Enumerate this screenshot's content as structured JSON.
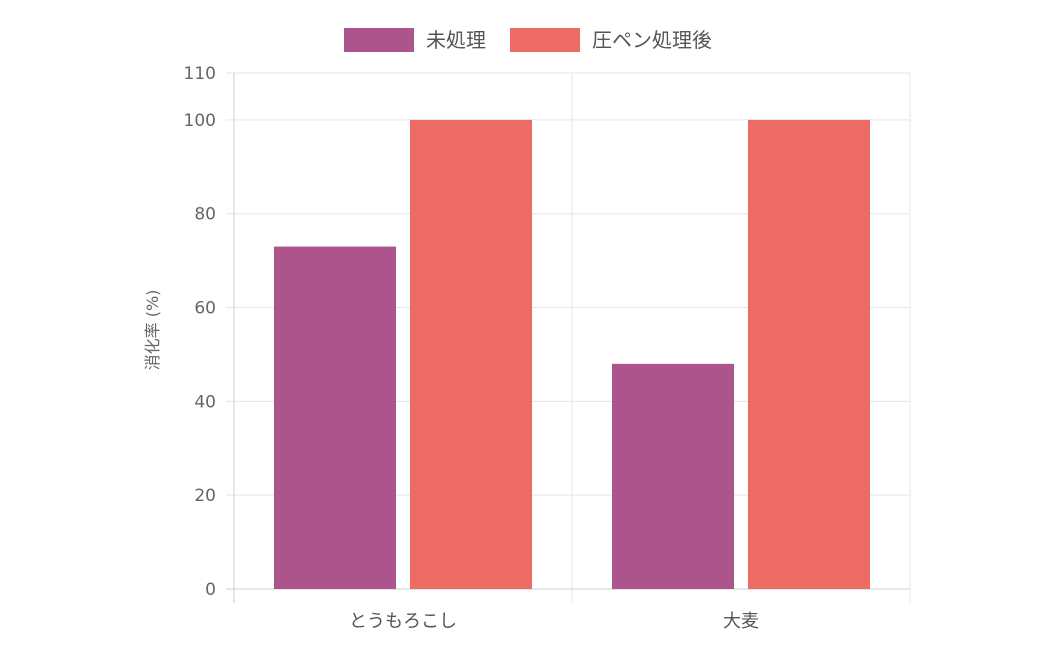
{
  "chart_data": {
    "type": "bar",
    "categories": [
      "とうもろこし",
      "大麦"
    ],
    "series": [
      {
        "name": "未処理",
        "values": [
          73,
          48
        ],
        "color": "#ad548d"
      },
      {
        "name": "圧ペン処理後",
        "values": [
          100,
          100
        ],
        "color": "#ec6b64"
      }
    ],
    "xlabel": "",
    "ylabel": "消化率 (%)",
    "ylim": [
      0,
      110
    ],
    "yticks": [
      0,
      20,
      40,
      60,
      80,
      100,
      110
    ],
    "grid": true,
    "legend_position": "top"
  }
}
